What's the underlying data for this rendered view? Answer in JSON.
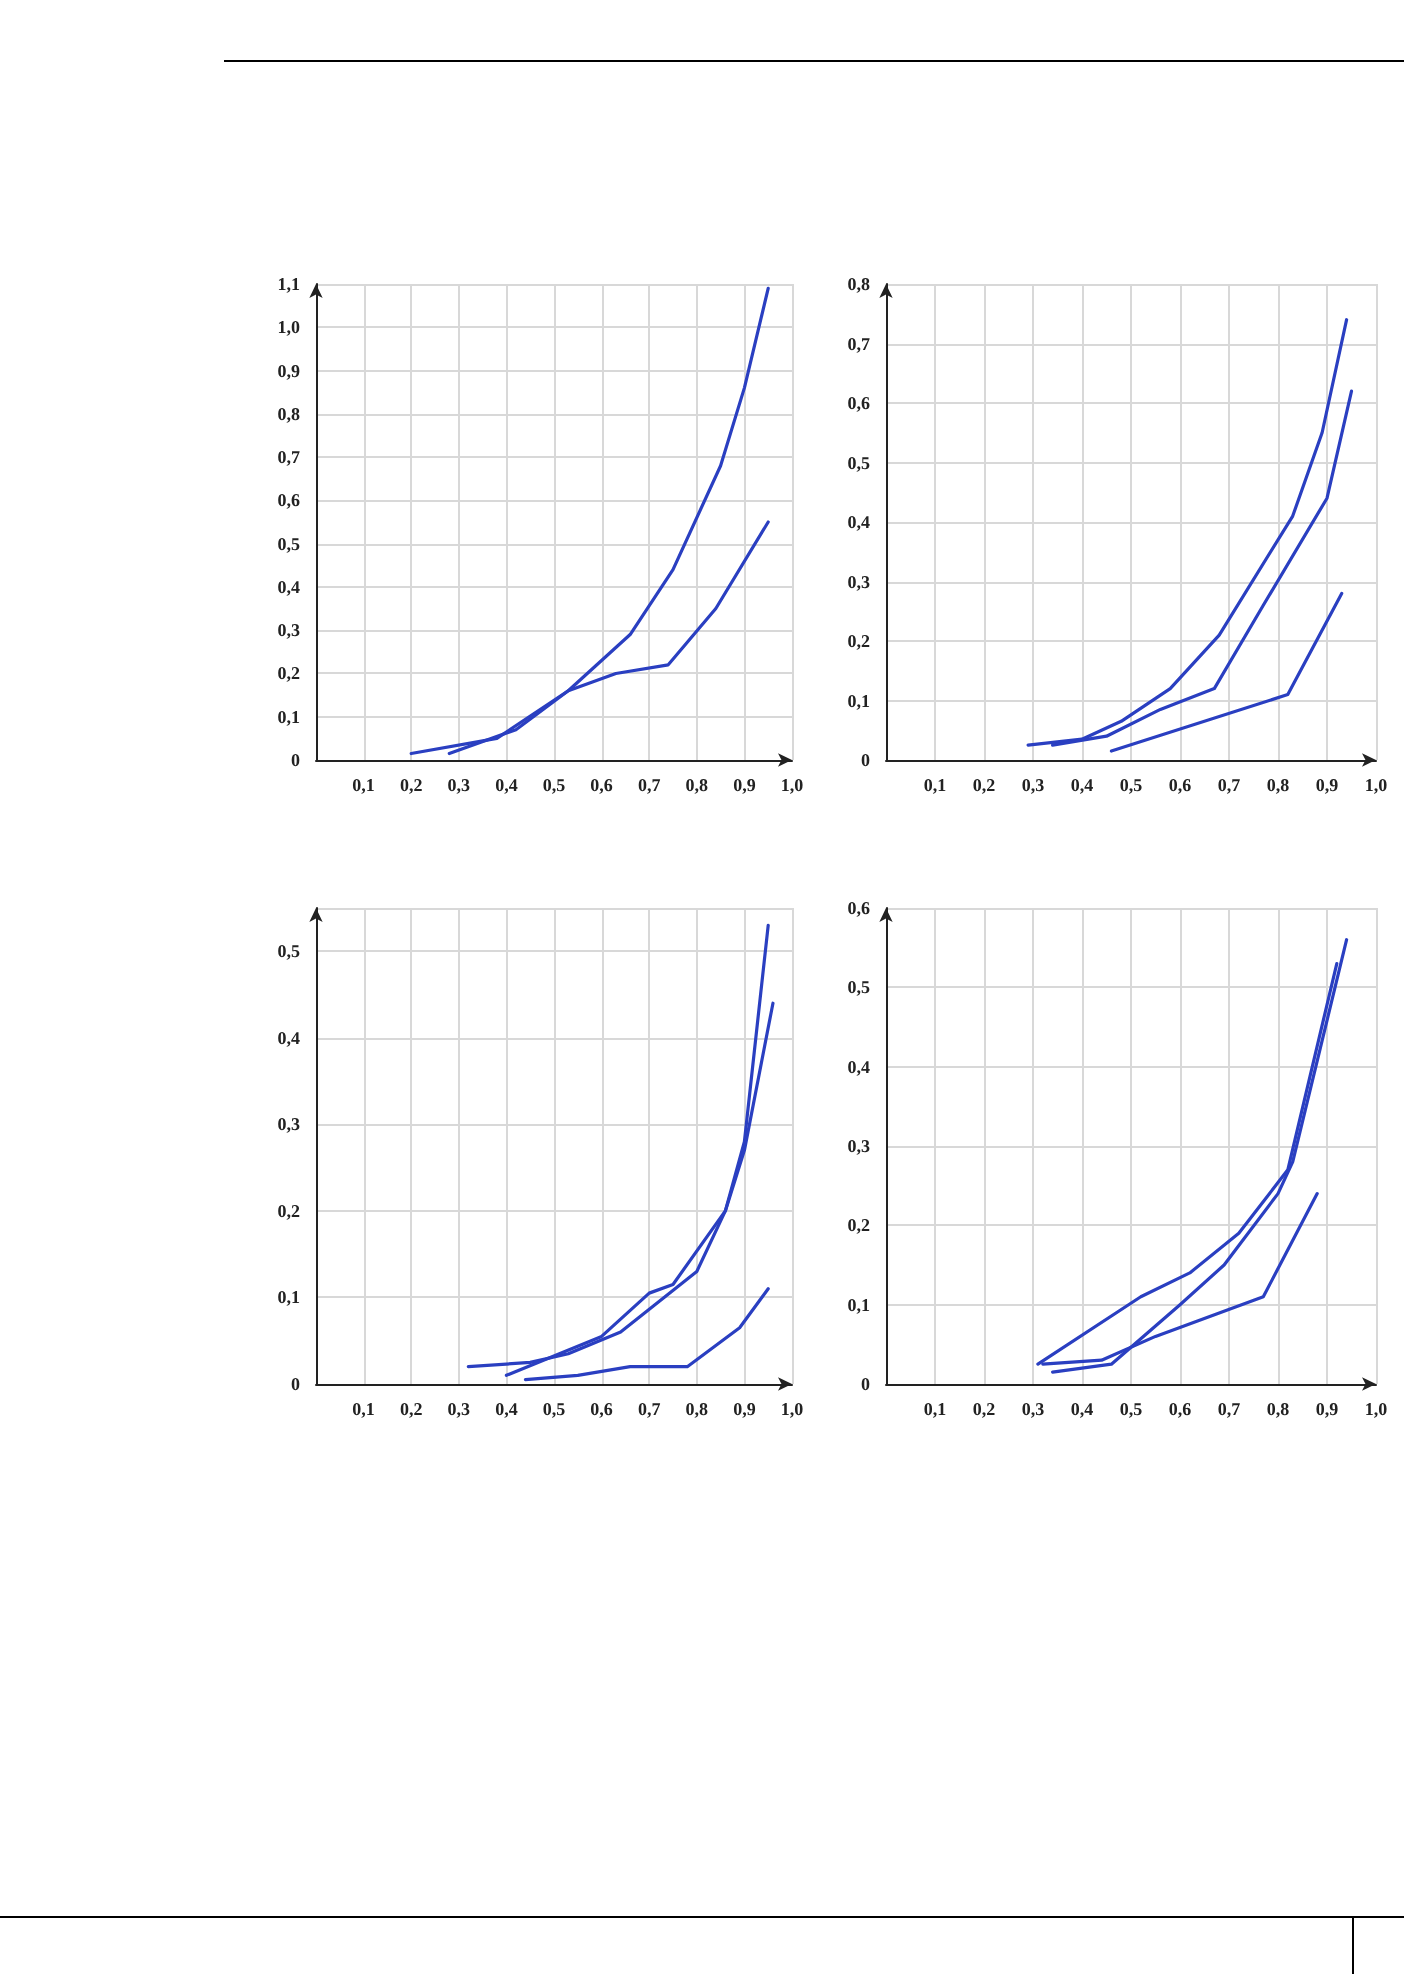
{
  "chart_data": [
    {
      "type": "line",
      "marker": "none",
      "line_style": "solid",
      "grid": true,
      "xlim": [
        0,
        1.0
      ],
      "ylim": [
        0,
        1.1
      ],
      "xticks": [
        {
          "value": 0.1,
          "label": "0,1"
        },
        {
          "value": 0.2,
          "label": "0,2"
        },
        {
          "value": 0.3,
          "label": "0,3"
        },
        {
          "value": 0.4,
          "label": "0,4"
        },
        {
          "value": 0.5,
          "label": "0,5"
        },
        {
          "value": 0.6,
          "label": "0,6"
        },
        {
          "value": 0.7,
          "label": "0,7"
        },
        {
          "value": 0.8,
          "label": "0,8"
        },
        {
          "value": 0.9,
          "label": "0,9"
        },
        {
          "value": 1.0,
          "label": "1,0"
        }
      ],
      "yticks": [
        {
          "value": 0,
          "label": "0"
        },
        {
          "value": 0.1,
          "label": "0,1"
        },
        {
          "value": 0.2,
          "label": "0,2"
        },
        {
          "value": 0.3,
          "label": "0,3"
        },
        {
          "value": 0.4,
          "label": "0,4"
        },
        {
          "value": 0.5,
          "label": "0,5"
        },
        {
          "value": 0.6,
          "label": "0,6"
        },
        {
          "value": 0.7,
          "label": "0,7"
        },
        {
          "value": 0.8,
          "label": "0,8"
        },
        {
          "value": 0.9,
          "label": "0,9"
        },
        {
          "value": 1.0,
          "label": "1,0"
        },
        {
          "value": 1.1,
          "label": "1,1"
        }
      ],
      "series": [
        {
          "color": "#2a3fc1",
          "x": [
            0.2,
            0.38,
            0.53,
            0.66,
            0.75,
            0.85,
            0.9,
            0.95
          ],
          "values": [
            0.015,
            0.05,
            0.16,
            0.29,
            0.44,
            0.68,
            0.86,
            1.09
          ]
        },
        {
          "color": "#2a3fc1",
          "x": [
            0.28,
            0.42,
            0.53,
            0.63,
            0.74,
            0.84,
            0.95
          ],
          "values": [
            0.015,
            0.07,
            0.16,
            0.2,
            0.22,
            0.35,
            0.55
          ]
        }
      ]
    },
    {
      "type": "line",
      "marker": "none",
      "line_style": "solid",
      "grid": true,
      "xlim": [
        0,
        1.0
      ],
      "ylim": [
        0,
        0.8
      ],
      "xticks": [
        {
          "value": 0.1,
          "label": "0,1"
        },
        {
          "value": 0.2,
          "label": "0,2"
        },
        {
          "value": 0.3,
          "label": "0,3"
        },
        {
          "value": 0.4,
          "label": "0,4"
        },
        {
          "value": 0.5,
          "label": "0,5"
        },
        {
          "value": 0.6,
          "label": "0,6"
        },
        {
          "value": 0.7,
          "label": "0,7"
        },
        {
          "value": 0.8,
          "label": "0,8"
        },
        {
          "value": 0.9,
          "label": "0,9"
        },
        {
          "value": 1.0,
          "label": "1,0"
        }
      ],
      "yticks": [
        {
          "value": 0,
          "label": "0"
        },
        {
          "value": 0.1,
          "label": "0,1"
        },
        {
          "value": 0.2,
          "label": "0,2"
        },
        {
          "value": 0.3,
          "label": "0,3"
        },
        {
          "value": 0.4,
          "label": "0,4"
        },
        {
          "value": 0.5,
          "label": "0,5"
        },
        {
          "value": 0.6,
          "label": "0,6"
        },
        {
          "value": 0.7,
          "label": "0,7"
        },
        {
          "value": 0.8,
          "label": "0,8"
        }
      ],
      "series": [
        {
          "color": "#2a3fc1",
          "x": [
            0.29,
            0.4,
            0.48,
            0.58,
            0.68,
            0.83,
            0.89,
            0.94
          ],
          "values": [
            0.025,
            0.035,
            0.065,
            0.12,
            0.21,
            0.41,
            0.55,
            0.74
          ]
        },
        {
          "color": "#2a3fc1",
          "x": [
            0.34,
            0.45,
            0.56,
            0.67,
            0.77,
            0.9,
            0.95
          ],
          "values": [
            0.025,
            0.04,
            0.085,
            0.12,
            0.26,
            0.44,
            0.62
          ]
        },
        {
          "color": "#2a3fc1",
          "x": [
            0.46,
            0.82,
            0.93
          ],
          "values": [
            0.015,
            0.11,
            0.28
          ]
        }
      ]
    },
    {
      "type": "line",
      "marker": "none",
      "line_style": "solid",
      "grid": true,
      "xlim": [
        0,
        1.0
      ],
      "ylim": [
        0,
        0.55
      ],
      "xticks": [
        {
          "value": 0.1,
          "label": "0,1"
        },
        {
          "value": 0.2,
          "label": "0,2"
        },
        {
          "value": 0.3,
          "label": "0,3"
        },
        {
          "value": 0.4,
          "label": "0,4"
        },
        {
          "value": 0.5,
          "label": "0,5"
        },
        {
          "value": 0.6,
          "label": "0,6"
        },
        {
          "value": 0.7,
          "label": "0,7"
        },
        {
          "value": 0.8,
          "label": "0,8"
        },
        {
          "value": 0.9,
          "label": "0,9"
        },
        {
          "value": 1.0,
          "label": "1,0"
        }
      ],
      "yticks": [
        {
          "value": 0,
          "label": "0"
        },
        {
          "value": 0.1,
          "label": "0,1"
        },
        {
          "value": 0.2,
          "label": "0,2"
        },
        {
          "value": 0.3,
          "label": "0,3"
        },
        {
          "value": 0.4,
          "label": "0,4"
        },
        {
          "value": 0.5,
          "label": "0,5"
        }
      ],
      "series": [
        {
          "color": "#2a3fc1",
          "x": [
            0.32,
            0.45,
            0.53,
            0.64,
            0.8,
            0.86,
            0.9,
            0.95
          ],
          "values": [
            0.02,
            0.025,
            0.035,
            0.06,
            0.13,
            0.2,
            0.28,
            0.53
          ]
        },
        {
          "color": "#2a3fc1",
          "x": [
            0.4,
            0.6,
            0.7,
            0.75,
            0.86,
            0.9,
            0.96
          ],
          "values": [
            0.01,
            0.055,
            0.105,
            0.115,
            0.2,
            0.27,
            0.44
          ]
        },
        {
          "color": "#2a3fc1",
          "x": [
            0.44,
            0.55,
            0.66,
            0.78,
            0.89,
            0.95
          ],
          "values": [
            0.005,
            0.01,
            0.02,
            0.02,
            0.065,
            0.11
          ]
        }
      ]
    },
    {
      "type": "line",
      "marker": "none",
      "line_style": "solid",
      "grid": true,
      "xlim": [
        0,
        1.0
      ],
      "ylim": [
        0,
        0.6
      ],
      "xticks": [
        {
          "value": 0.1,
          "label": "0,1"
        },
        {
          "value": 0.2,
          "label": "0,2"
        },
        {
          "value": 0.3,
          "label": "0,3"
        },
        {
          "value": 0.4,
          "label": "0,4"
        },
        {
          "value": 0.5,
          "label": "0,5"
        },
        {
          "value": 0.6,
          "label": "0,6"
        },
        {
          "value": 0.7,
          "label": "0,7"
        },
        {
          "value": 0.8,
          "label": "0,8"
        },
        {
          "value": 0.9,
          "label": "0,9"
        },
        {
          "value": 1.0,
          "label": "1,0"
        }
      ],
      "yticks": [
        {
          "value": 0,
          "label": "0"
        },
        {
          "value": 0.1,
          "label": "0,1"
        },
        {
          "value": 0.2,
          "label": "0,2"
        },
        {
          "value": 0.3,
          "label": "0,3"
        },
        {
          "value": 0.4,
          "label": "0,4"
        },
        {
          "value": 0.5,
          "label": "0,5"
        },
        {
          "value": 0.6,
          "label": "0,6"
        }
      ],
      "series": [
        {
          "color": "#2a3fc1",
          "x": [
            0.31,
            0.52,
            0.62,
            0.72,
            0.82,
            0.92
          ],
          "values": [
            0.025,
            0.11,
            0.14,
            0.19,
            0.27,
            0.53
          ]
        },
        {
          "color": "#2a3fc1",
          "x": [
            0.32,
            0.44,
            0.55,
            0.77,
            0.88
          ],
          "values": [
            0.025,
            0.03,
            0.06,
            0.11,
            0.24
          ]
        },
        {
          "color": "#2a3fc1",
          "x": [
            0.34,
            0.46,
            0.6,
            0.69,
            0.8,
            0.83,
            0.94
          ],
          "values": [
            0.015,
            0.025,
            0.1,
            0.15,
            0.24,
            0.28,
            0.56
          ]
        }
      ]
    }
  ]
}
